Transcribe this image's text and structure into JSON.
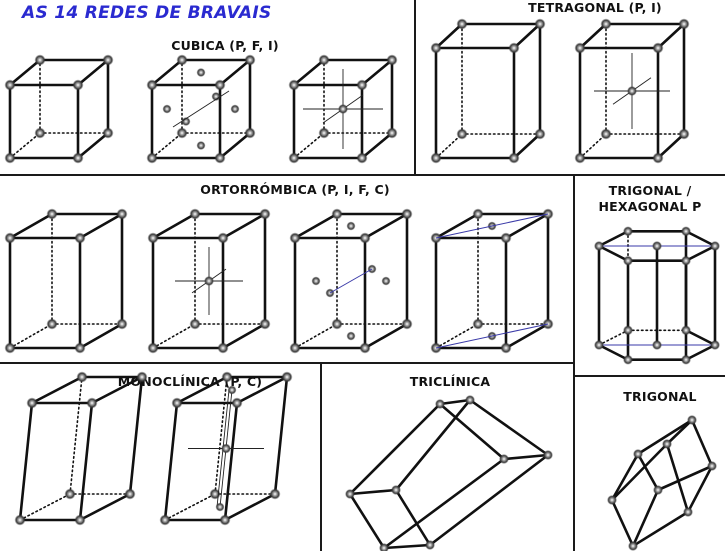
{
  "main_title": "AS 14 REDES DE BRAVAIS",
  "sections": {
    "cubica": "CUBICA (P, F, I)",
    "tetragonal": "TETRAGONAL (P, I)",
    "ortorrombica": "ORTORRÓMBICA (P, I, F, C)",
    "trigonal_hex_line1": "TRIGONAL /",
    "trigonal_hex_line2": "HEXAGONAL P",
    "monoclinica": "MONOCLÍNICA (P, C)",
    "triclinica": "TRICLÍNICA",
    "trigonal": "TRIGONAL"
  },
  "colors": {
    "title_blue": "#2a2ad0",
    "line": "#111111",
    "divider": "#1a1a1a"
  },
  "lattices": [
    {
      "id": "cubic-p"
    },
    {
      "id": "cubic-f"
    },
    {
      "id": "cubic-i"
    },
    {
      "id": "tetragonal-p"
    },
    {
      "id": "tetragonal-i"
    },
    {
      "id": "orthorhombic-p"
    },
    {
      "id": "orthorhombic-i"
    },
    {
      "id": "orthorhombic-f"
    },
    {
      "id": "orthorhombic-c"
    },
    {
      "id": "hexagonal-p"
    },
    {
      "id": "monoclinic-p"
    },
    {
      "id": "monoclinic-c"
    },
    {
      "id": "triclinic"
    },
    {
      "id": "trigonal-r"
    }
  ]
}
